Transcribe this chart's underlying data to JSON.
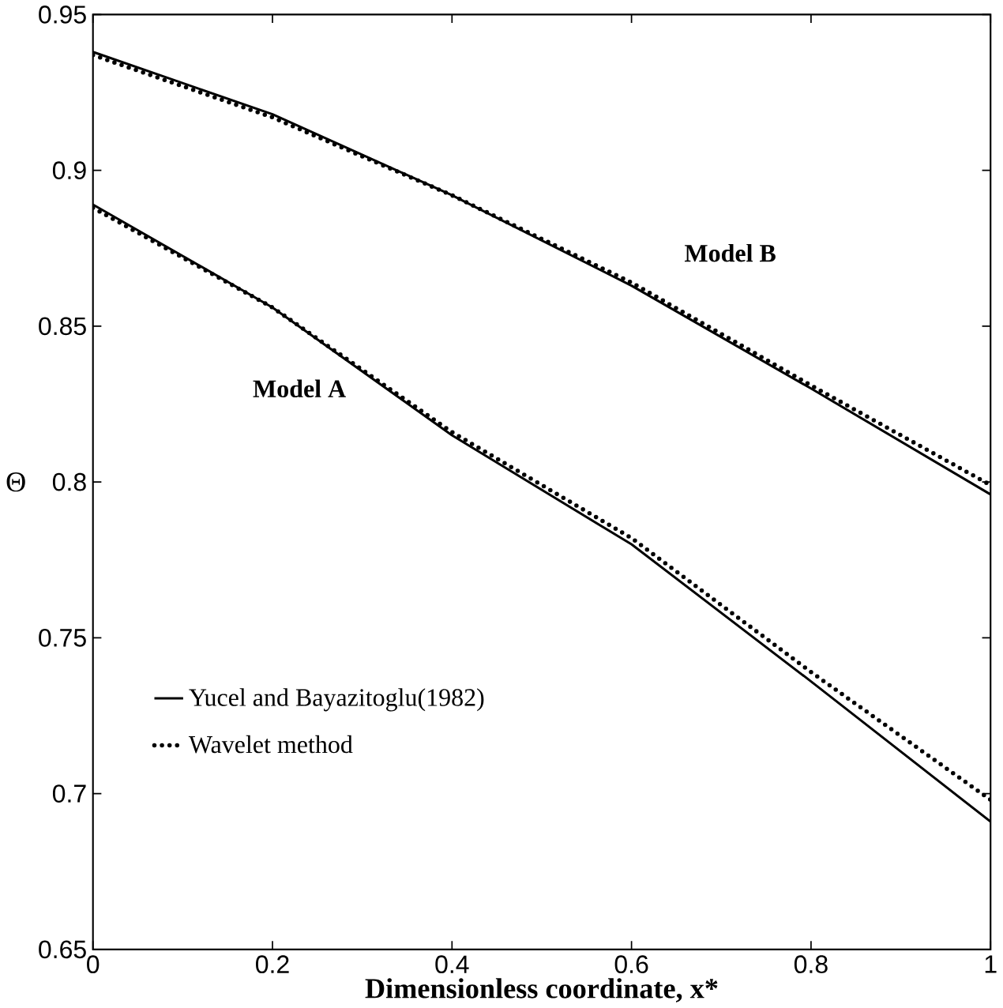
{
  "chart_data": {
    "type": "line",
    "xlabel": "Dimensionless coordinate, x*",
    "ylabel": "Θ",
    "xlim": [
      0,
      1
    ],
    "ylim": [
      0.65,
      0.95
    ],
    "xticks": [
      0,
      0.2,
      0.4,
      0.6,
      0.8,
      1
    ],
    "yticks": [
      0.65,
      0.7,
      0.75,
      0.8,
      0.85,
      0.9,
      0.95
    ],
    "grid": false,
    "legend": "bottom left",
    "marker": "none",
    "x": [
      0,
      0.2,
      0.4,
      0.6,
      0.8,
      1
    ],
    "series": [
      {
        "name": "Yucel and Bayazitoglu(1982)",
        "color": "#000000",
        "line_style": "solid",
        "values": [
          0.889,
          0.856,
          0.815,
          0.78,
          0.736,
          0.691
        ]
      },
      {
        "name": "Wavelet method",
        "color": "#000000",
        "line_style": "dotted",
        "values": [
          0.888,
          0.856,
          0.816,
          0.782,
          0.739,
          0.698
        ]
      },
      {
        "color": "#000000",
        "line_style": "solid",
        "values": [
          0.938,
          0.918,
          0.892,
          0.863,
          0.83,
          0.796
        ]
      },
      {
        "color": "#000000",
        "line_style": "dotted",
        "values": [
          0.937,
          0.917,
          0.892,
          0.864,
          0.831,
          0.799
        ]
      }
    ],
    "annotations": [
      "Model A",
      "Model B"
    ]
  }
}
